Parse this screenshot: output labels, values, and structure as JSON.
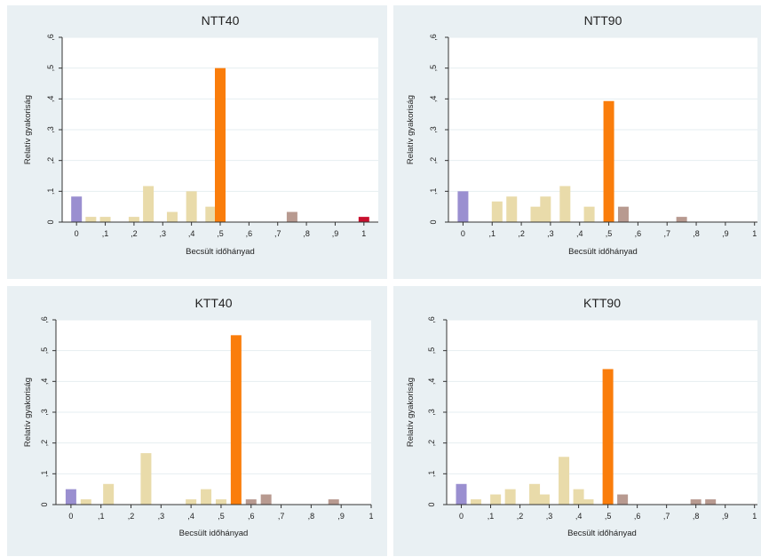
{
  "colors": {
    "panel_bg": "#e9f0f3",
    "plot_bg": "#ffffff",
    "grid": "#e6eef1",
    "zero_bar": "#9a8fd0",
    "default_bar": "#e9dbaa",
    "half_bar": "#fa7d0b",
    "above_bar": "#b89a90",
    "one_bar": "#c8102e"
  },
  "chart_data": [
    {
      "type": "bar",
      "title": "NTT40",
      "xlabel": "Becsült időhányad",
      "ylabel": "Relatív gyakoriság",
      "xlim": [
        -0.05,
        1.05
      ],
      "ylim": [
        0,
        0.6
      ],
      "x_ticks": [
        "0",
        ",1",
        ",2",
        ",3",
        ",4",
        ",5",
        ",6",
        ",7",
        ",8",
        ",9",
        "1"
      ],
      "y_ticks": [
        "0",
        ",1",
        ",2",
        ",3",
        ",4",
        ",5",
        ",6"
      ],
      "bars": [
        {
          "x": 0.0,
          "y": 0.083,
          "cat": "zero"
        },
        {
          "x": 0.05,
          "y": 0.017,
          "cat": "default"
        },
        {
          "x": 0.1,
          "y": 0.017,
          "cat": "default"
        },
        {
          "x": 0.2,
          "y": 0.017,
          "cat": "default"
        },
        {
          "x": 0.25,
          "y": 0.117,
          "cat": "default"
        },
        {
          "x": 0.333,
          "y": 0.033,
          "cat": "default"
        },
        {
          "x": 0.4,
          "y": 0.1,
          "cat": "default"
        },
        {
          "x": 0.467,
          "y": 0.05,
          "cat": "default"
        },
        {
          "x": 0.5,
          "y": 0.5,
          "cat": "half"
        },
        {
          "x": 0.75,
          "y": 0.033,
          "cat": "above"
        },
        {
          "x": 1.0,
          "y": 0.017,
          "cat": "one"
        }
      ]
    },
    {
      "type": "bar",
      "title": "NTT90",
      "xlabel": "Becsült időhányad",
      "ylabel": "Relatív gyakoriság",
      "xlim": [
        -0.05,
        1.01
      ],
      "ylim": [
        0,
        0.6
      ],
      "x_ticks": [
        "0",
        ",1",
        ",2",
        ",3",
        ",4",
        ",5",
        ",6",
        ",7",
        ",8",
        ",9",
        "1"
      ],
      "y_ticks": [
        "0",
        ",1",
        ",2",
        ",3",
        ",4",
        ",5",
        ",6"
      ],
      "bars": [
        {
          "x": 0.0,
          "y": 0.1,
          "cat": "zero"
        },
        {
          "x": 0.117,
          "y": 0.067,
          "cat": "default"
        },
        {
          "x": 0.167,
          "y": 0.083,
          "cat": "default"
        },
        {
          "x": 0.25,
          "y": 0.05,
          "cat": "default"
        },
        {
          "x": 0.283,
          "y": 0.083,
          "cat": "default"
        },
        {
          "x": 0.35,
          "y": 0.117,
          "cat": "default"
        },
        {
          "x": 0.433,
          "y": 0.05,
          "cat": "default"
        },
        {
          "x": 0.5,
          "y": 0.393,
          "cat": "half"
        },
        {
          "x": 0.55,
          "y": 0.05,
          "cat": "above"
        },
        {
          "x": 0.75,
          "y": 0.017,
          "cat": "above"
        }
      ]
    },
    {
      "type": "bar",
      "title": "KTT40",
      "xlabel": "Becsült időhányad",
      "ylabel": "Relatív gyakoriság",
      "xlim": [
        -0.05,
        1.0
      ],
      "ylim": [
        0,
        0.6
      ],
      "x_ticks": [
        "0",
        ",1",
        ",2",
        ",3",
        ",4",
        ",5",
        ",6",
        ",7",
        ",8",
        ",9",
        "1"
      ],
      "y_ticks": [
        "0",
        ",1",
        ",2",
        ",3",
        ",4",
        ",5",
        ",6"
      ],
      "bars": [
        {
          "x": 0.0,
          "y": 0.05,
          "cat": "zero"
        },
        {
          "x": 0.05,
          "y": 0.017,
          "cat": "default"
        },
        {
          "x": 0.125,
          "y": 0.067,
          "cat": "default"
        },
        {
          "x": 0.25,
          "y": 0.167,
          "cat": "default"
        },
        {
          "x": 0.4,
          "y": 0.017,
          "cat": "default"
        },
        {
          "x": 0.45,
          "y": 0.05,
          "cat": "default"
        },
        {
          "x": 0.5,
          "y": 0.017,
          "cat": "default"
        },
        {
          "x": 0.55,
          "y": 0.55,
          "cat": "half"
        },
        {
          "x": 0.6,
          "y": 0.017,
          "cat": "above"
        },
        {
          "x": 0.65,
          "y": 0.033,
          "cat": "above"
        },
        {
          "x": 0.875,
          "y": 0.017,
          "cat": "above"
        }
      ]
    },
    {
      "type": "bar",
      "title": "KTT90",
      "xlabel": "Becsült időhányad",
      "ylabel": "Relatív gyakoriság",
      "xlim": [
        -0.05,
        1.01
      ],
      "ylim": [
        0,
        0.6
      ],
      "x_ticks": [
        "0",
        ",1",
        ",2",
        ",3",
        ",4",
        ",5",
        ",6",
        ",7",
        ",8",
        ",9",
        "1"
      ],
      "y_ticks": [
        "0",
        ",1",
        ",2",
        ",3",
        ",4",
        ",5",
        ",6"
      ],
      "bars": [
        {
          "x": 0.0,
          "y": 0.067,
          "cat": "zero"
        },
        {
          "x": 0.05,
          "y": 0.017,
          "cat": "default"
        },
        {
          "x": 0.117,
          "y": 0.033,
          "cat": "default"
        },
        {
          "x": 0.167,
          "y": 0.05,
          "cat": "default"
        },
        {
          "x": 0.25,
          "y": 0.067,
          "cat": "default"
        },
        {
          "x": 0.283,
          "y": 0.033,
          "cat": "default"
        },
        {
          "x": 0.35,
          "y": 0.155,
          "cat": "default"
        },
        {
          "x": 0.4,
          "y": 0.05,
          "cat": "default"
        },
        {
          "x": 0.433,
          "y": 0.017,
          "cat": "default"
        },
        {
          "x": 0.5,
          "y": 0.44,
          "cat": "half"
        },
        {
          "x": 0.55,
          "y": 0.033,
          "cat": "above"
        },
        {
          "x": 0.8,
          "y": 0.017,
          "cat": "above"
        },
        {
          "x": 0.85,
          "y": 0.017,
          "cat": "above"
        }
      ]
    }
  ]
}
